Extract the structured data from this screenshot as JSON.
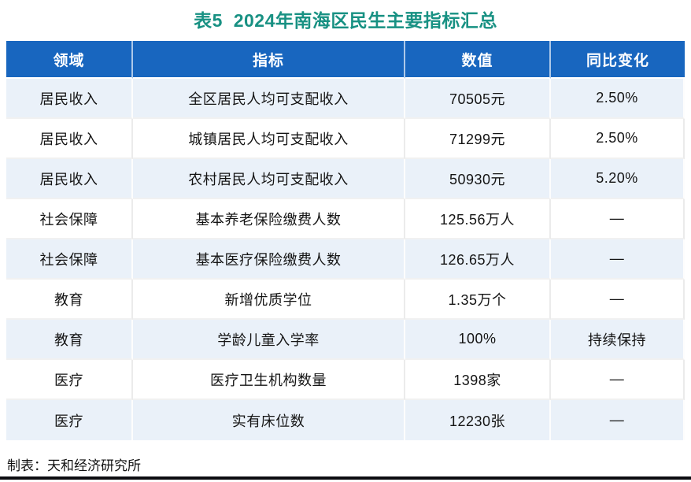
{
  "title": "表5  2024年南海区民生主要指标汇总",
  "table": {
    "columns": [
      {
        "label": "领域"
      },
      {
        "label": "指标"
      },
      {
        "label": "数值"
      },
      {
        "label": "同比变化"
      }
    ],
    "rows": [
      {
        "cells": [
          "居民收入",
          "全区居民人均可支配收入",
          "70505元",
          "2.50%"
        ]
      },
      {
        "cells": [
          "居民收入",
          "城镇居民人均可支配收入",
          "71299元",
          "2.50%"
        ]
      },
      {
        "cells": [
          "居民收入",
          "农村居民人均可支配收入",
          "50930元",
          "5.20%"
        ]
      },
      {
        "cells": [
          "社会保障",
          "基本养老保险缴费人数",
          "125.56万人",
          "—"
        ]
      },
      {
        "cells": [
          "社会保障",
          "基本医疗保险缴费人数",
          "126.65万人",
          "—"
        ]
      },
      {
        "cells": [
          "教育",
          "新增优质学位",
          "1.35万个",
          "—"
        ]
      },
      {
        "cells": [
          "教育",
          "学龄儿童入学率",
          "100%",
          "持续保持"
        ]
      },
      {
        "cells": [
          "医疗",
          "医疗卫生机构数量",
          "1398家",
          "—"
        ]
      },
      {
        "cells": [
          "医疗",
          "实有床位数",
          "12230张",
          "—"
        ]
      }
    ]
  },
  "footer": {
    "credit": "制表：天和经济研究所"
  },
  "colors": {
    "title_text": "#189183",
    "header_bg": "#1866BF",
    "header_text": "#FFFFFF",
    "row_alt_bg": "#EAF1F9",
    "row_bg": "#FFFFFF",
    "body_text": "#141414",
    "bottom_bar": "#0C0C10"
  },
  "chart_data": {
    "type": "table",
    "title": "表5 2024年南海区民生主要指标汇总",
    "columns": [
      "领域",
      "指标",
      "数值",
      "同比变化"
    ],
    "rows": [
      [
        "居民收入",
        "全区居民人均可支配收入",
        "70505元",
        "2.50%"
      ],
      [
        "居民收入",
        "城镇居民人均可支配收入",
        "71299元",
        "2.50%"
      ],
      [
        "居民收入",
        "农村居民人均可支配收入",
        "50930元",
        "5.20%"
      ],
      [
        "社会保障",
        "基本养老保险缴费人数",
        "125.56万人",
        "—"
      ],
      [
        "社会保障",
        "基本医疗保险缴费人数",
        "126.65万人",
        "—"
      ],
      [
        "教育",
        "新增优质学位",
        "1.35万个",
        "—"
      ],
      [
        "教育",
        "学龄儿童入学率",
        "100%",
        "持续保持"
      ],
      [
        "医疗",
        "医疗卫生机构数量",
        "1398家",
        "—"
      ],
      [
        "医疗",
        "实有床位数",
        "12230张",
        "—"
      ]
    ],
    "notes": "制表：天和经济研究所"
  }
}
